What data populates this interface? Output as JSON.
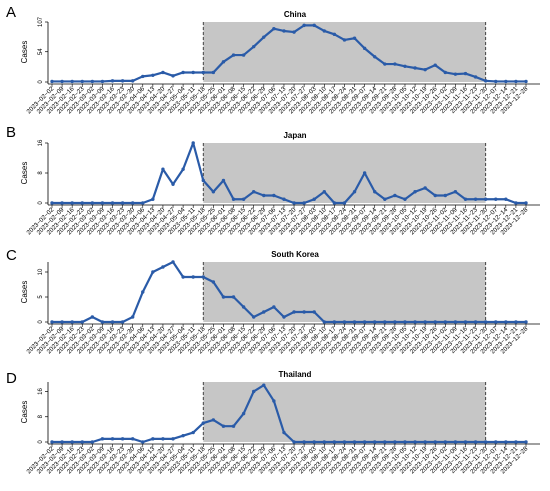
{
  "chart_data": [
    {
      "panel": "A",
      "title": "China",
      "type": "line",
      "ylabel": "Cases",
      "yticks": [
        0,
        54,
        107
      ],
      "ylim": [
        0,
        107
      ],
      "dates": [
        "2023−02−02",
        "2023−02−09",
        "2023−02−16",
        "2023−02−23",
        "2023−03−02",
        "2023−03−09",
        "2023−03−16",
        "2023−03−23",
        "2023−03−30",
        "2023−04−06",
        "2023−04−13",
        "2023−04−20",
        "2023−04−27",
        "2023−05−04",
        "2023−05−11",
        "2023−05−18",
        "2023−05−25",
        "2023−06−01",
        "2023−06−08",
        "2023−06−15",
        "2023−06−22",
        "2023−06−29",
        "2023−07−06",
        "2023−07−13",
        "2023−07−20",
        "2023−07−27",
        "2023−08−03",
        "2023−08−10",
        "2023−08−17",
        "2023−08−24",
        "2023−08−31",
        "2023−09−07",
        "2023−09−14",
        "2023−09−21",
        "2023−09−28",
        "2023−10−05",
        "2023−10−12",
        "2023−10−19",
        "2023−10−26",
        "2023−11−02",
        "2023−11−09",
        "2023−11−16",
        "2023−11−23",
        "2023−11−30",
        "2023−12−07",
        "2023−12−14",
        "2023−12−21",
        "2023−12−28"
      ],
      "values": [
        1,
        1,
        1,
        1,
        1,
        1,
        2,
        2,
        2,
        10,
        12,
        17,
        11,
        17,
        17,
        17,
        17,
        36,
        48,
        48,
        63,
        80,
        95,
        91,
        89,
        101,
        101,
        91,
        85,
        75,
        78,
        60,
        45,
        32,
        32,
        28,
        25,
        22,
        30,
        17,
        14,
        15,
        9,
        2,
        1,
        1,
        1,
        1
      ],
      "shaded_range": [
        "2023−05−18",
        "2023−11−30"
      ],
      "color": "#2a5ba8"
    },
    {
      "panel": "B",
      "title": "Japan",
      "type": "line",
      "ylabel": "Cases",
      "yticks": [
        0,
        8,
        16
      ],
      "ylim": [
        0,
        16
      ],
      "dates": [
        "2023−02−02",
        "2023−02−09",
        "2023−02−16",
        "2023−02−23",
        "2023−03−02",
        "2023−03−09",
        "2023−03−16",
        "2023−03−23",
        "2023−03−30",
        "2023−04−06",
        "2023−04−13",
        "2023−04−20",
        "2023−04−27",
        "2023−05−04",
        "2023−05−11",
        "2023−05−18",
        "2023−05−25",
        "2023−06−01",
        "2023−06−08",
        "2023−06−15",
        "2023−06−22",
        "2023−06−29",
        "2023−07−06",
        "2023−07−13",
        "2023−07−20",
        "2023−07−27",
        "2023−08−03",
        "2023−08−10",
        "2023−08−17",
        "2023−08−24",
        "2023−08−31",
        "2023−09−07",
        "2023−09−14",
        "2023−09−21",
        "2023−09−28",
        "2023−10−05",
        "2023−10−12",
        "2023−10−19",
        "2023−10−26",
        "2023−11−02",
        "2023−11−09",
        "2023−11−16",
        "2023−11−23",
        "2023−11−30",
        "2023−12−07",
        "2023−12−14",
        "2023−12−21",
        "2023−12−28"
      ],
      "values": [
        0,
        0,
        0,
        0,
        0,
        0,
        0,
        0,
        0,
        0,
        1,
        9,
        5,
        9,
        16,
        6,
        3,
        6,
        1,
        1,
        3,
        2,
        2,
        1,
        0,
        0,
        1,
        3,
        0,
        0,
        3,
        8,
        3,
        1,
        2,
        1,
        3,
        4,
        2,
        2,
        3,
        1,
        1,
        1,
        1,
        1,
        0,
        0
      ],
      "shaded_range": [
        "2023−05−18",
        "2023−11−30"
      ],
      "color": "#2a5ba8"
    },
    {
      "panel": "C",
      "title": "South Korea",
      "type": "line",
      "ylabel": "Cases",
      "yticks": [
        0,
        5,
        10
      ],
      "ylim": [
        0,
        12
      ],
      "dates": [
        "2023−02−02",
        "2023−02−09",
        "2023−02−16",
        "2023−02−23",
        "2023−03−02",
        "2023−03−09",
        "2023−03−16",
        "2023−03−23",
        "2023−03−30",
        "2023−04−06",
        "2023−04−13",
        "2023−04−20",
        "2023−04−27",
        "2023−05−04",
        "2023−05−11",
        "2023−05−18",
        "2023−05−25",
        "2023−06−01",
        "2023−06−08",
        "2023−06−15",
        "2023−06−22",
        "2023−06−29",
        "2023−07−06",
        "2023−07−13",
        "2023−07−20",
        "2023−07−27",
        "2023−08−03",
        "2023−08−10",
        "2023−08−17",
        "2023−08−24",
        "2023−08−31",
        "2023−09−07",
        "2023−09−14",
        "2023−09−21",
        "2023−09−28",
        "2023−10−05",
        "2023−10−12",
        "2023−10−19",
        "2023−10−26",
        "2023−11−02",
        "2023−11−09",
        "2023−11−16",
        "2023−11−23",
        "2023−11−30",
        "2023−12−07",
        "2023−12−14",
        "2023−12−21",
        "2023−12−28"
      ],
      "values": [
        0,
        0,
        0,
        0,
        1,
        0,
        0,
        0,
        1,
        6,
        10,
        11,
        12,
        9,
        9,
        9,
        8,
        5,
        5,
        3,
        1,
        2,
        3,
        1,
        2,
        2,
        2,
        0,
        0,
        0,
        0,
        0,
        0,
        0,
        0,
        0,
        0,
        0,
        0,
        0,
        0,
        0,
        0,
        0,
        0,
        0,
        0,
        0
      ],
      "shaded_range": [
        "2023−05−18",
        "2023−11−30"
      ],
      "color": "#2a5ba8"
    },
    {
      "panel": "D",
      "title": "Thailand",
      "type": "line",
      "ylabel": "Cases",
      "yticks": [
        0,
        8,
        16
      ],
      "ylim": [
        0,
        19
      ],
      "dates": [
        "2023−02−02",
        "2023−02−09",
        "2023−02−16",
        "2023−02−23",
        "2023−03−02",
        "2023−03−09",
        "2023−03−16",
        "2023−03−23",
        "2023−03−30",
        "2023−04−06",
        "2023−04−13",
        "2023−04−20",
        "2023−04−27",
        "2023−05−04",
        "2023−05−11",
        "2023−05−18",
        "2023−05−25",
        "2023−06−01",
        "2023−06−08",
        "2023−06−15",
        "2023−06−22",
        "2023−06−29",
        "2023−07−06",
        "2023−07−13",
        "2023−07−20",
        "2023−07−27",
        "2023−08−03",
        "2023−08−10",
        "2023−08−17",
        "2023−08−24",
        "2023−08−31",
        "2023−09−07",
        "2023−09−14",
        "2023−09−21",
        "2023−09−28",
        "2023−10−05",
        "2023−10−12",
        "2023−10−19",
        "2023−10−26",
        "2023−11−02",
        "2023−11−09",
        "2023−11−16",
        "2023−11−23",
        "2023−11−30",
        "2023−12−07",
        "2023−12−14",
        "2023−12−21",
        "2023−12−28"
      ],
      "values": [
        0,
        0,
        0,
        0,
        0,
        1,
        1,
        1,
        1,
        0,
        1,
        1,
        1,
        2,
        3,
        6,
        7,
        5,
        5,
        9,
        16,
        18,
        13,
        3,
        0,
        0,
        0,
        0,
        0,
        0,
        0,
        0,
        0,
        0,
        0,
        0,
        0,
        0,
        0,
        0,
        0,
        0,
        0,
        0,
        0,
        0,
        0,
        0
      ],
      "shaded_range": [
        "2023−05−18",
        "2023−11−30"
      ],
      "color": "#2a5ba8"
    }
  ]
}
